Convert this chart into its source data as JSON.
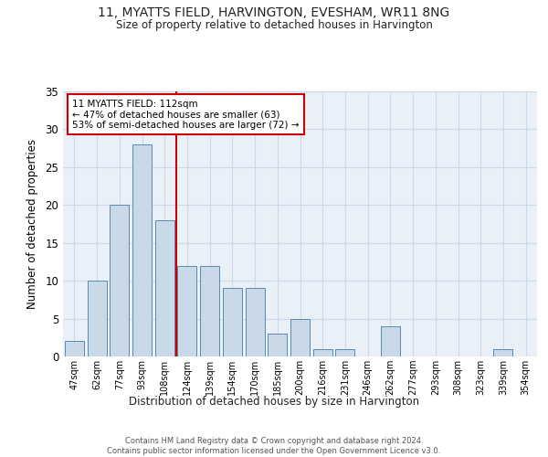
{
  "title1": "11, MYATTS FIELD, HARVINGTON, EVESHAM, WR11 8NG",
  "title2": "Size of property relative to detached houses in Harvington",
  "xlabel": "Distribution of detached houses by size in Harvington",
  "ylabel": "Number of detached properties",
  "categories": [
    "47sqm",
    "62sqm",
    "77sqm",
    "93sqm",
    "108sqm",
    "124sqm",
    "139sqm",
    "154sqm",
    "170sqm",
    "185sqm",
    "200sqm",
    "216sqm",
    "231sqm",
    "246sqm",
    "262sqm",
    "277sqm",
    "293sqm",
    "308sqm",
    "323sqm",
    "339sqm",
    "354sqm"
  ],
  "values": [
    2,
    10,
    20,
    28,
    18,
    12,
    12,
    9,
    9,
    3,
    5,
    1,
    1,
    0,
    4,
    0,
    0,
    0,
    0,
    1,
    0
  ],
  "bar_color": "#c9d9e8",
  "bar_edge_color": "#5a8ab0",
  "grid_color": "#d0d8e8",
  "background_color": "#eaf0f8",
  "vline_color": "#cc0000",
  "annotation_text": "11 MYATTS FIELD: 112sqm\n← 47% of detached houses are smaller (63)\n53% of semi-detached houses are larger (72) →",
  "annotation_box_color": "#cc0000",
  "footer_text": "Contains HM Land Registry data © Crown copyright and database right 2024.\nContains public sector information licensed under the Open Government Licence v3.0.",
  "ylim": [
    0,
    35
  ],
  "yticks": [
    0,
    5,
    10,
    15,
    20,
    25,
    30,
    35
  ]
}
